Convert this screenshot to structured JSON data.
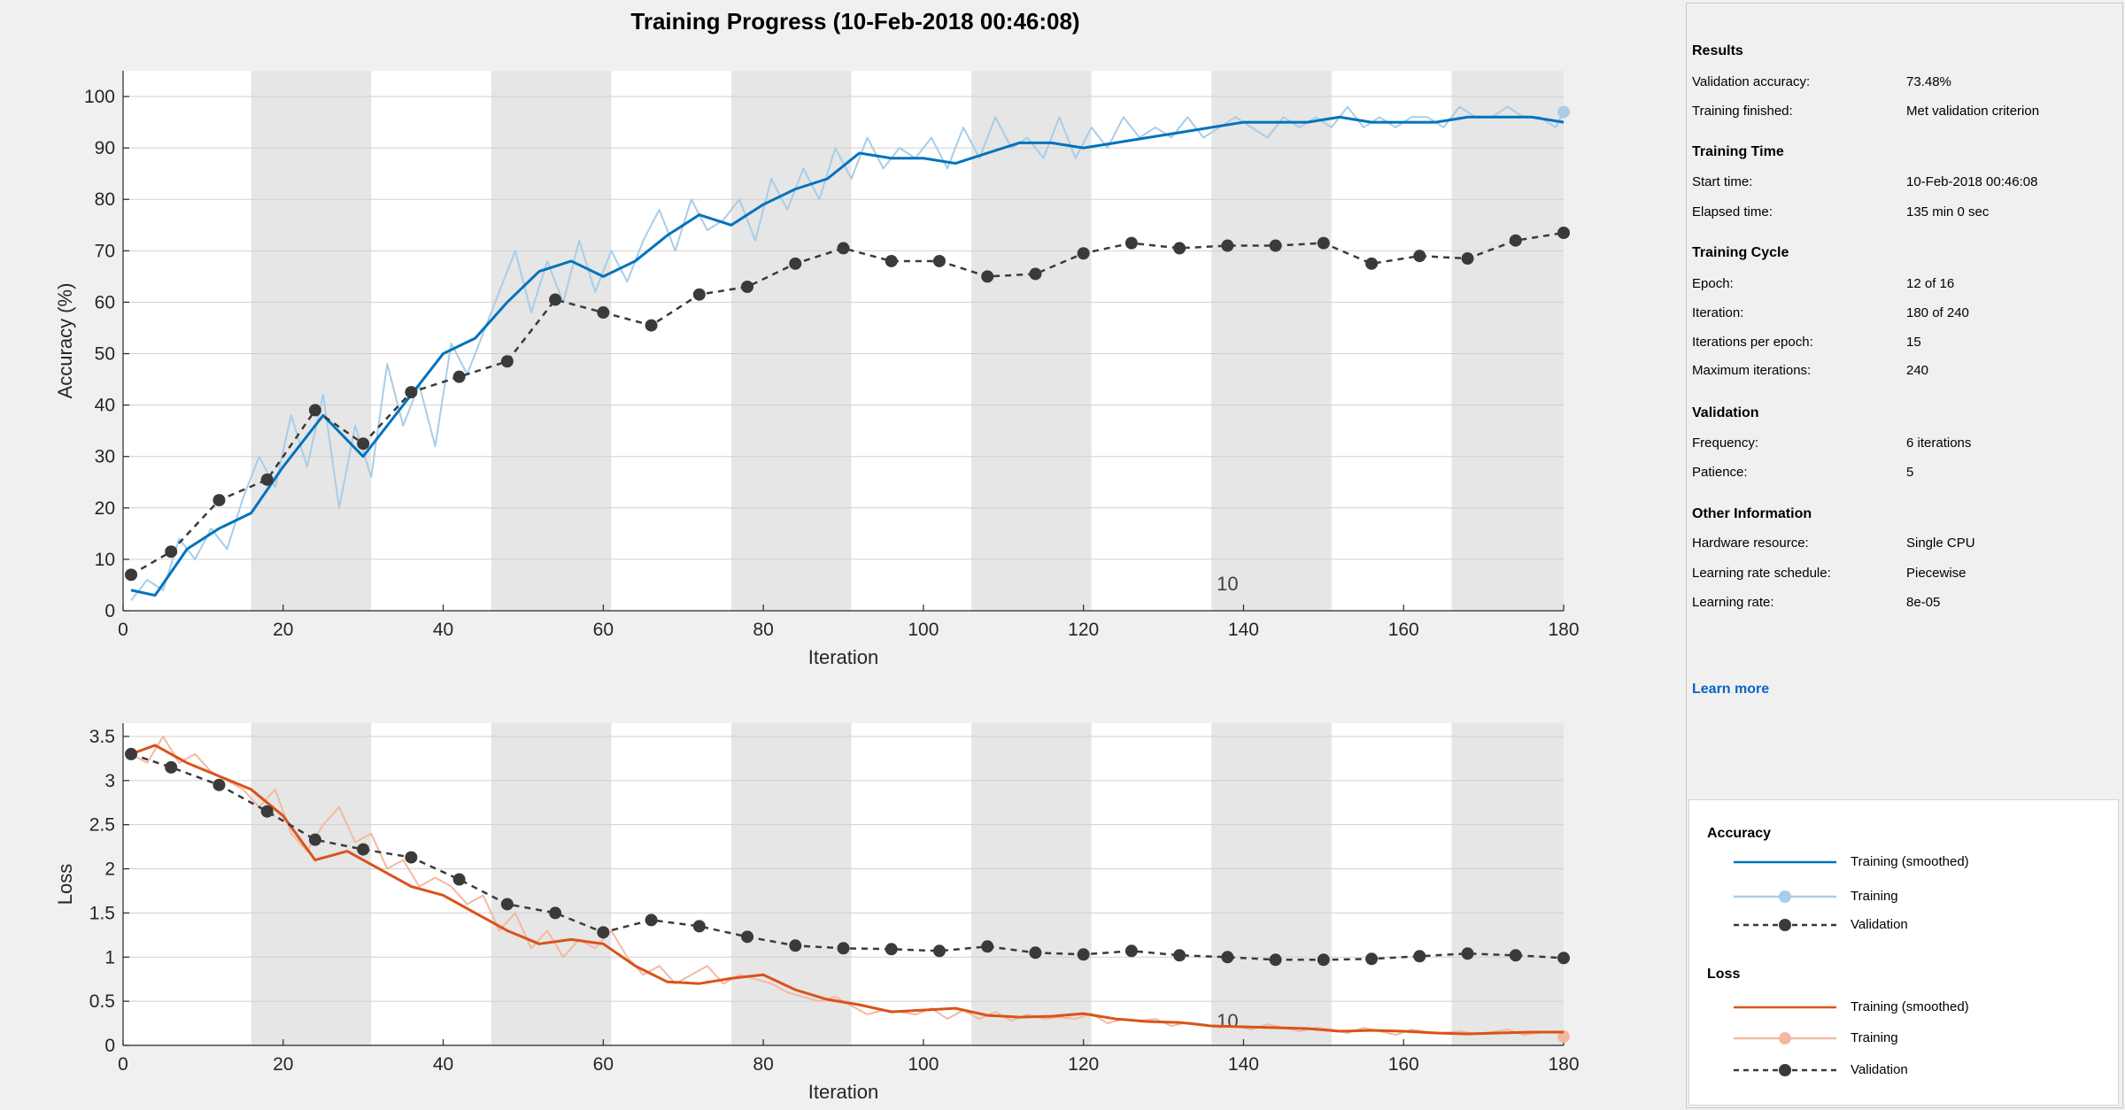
{
  "title": "Training Progress (10-Feb-2018 00:46:08)",
  "colors": {
    "accuracy_smoothed": "#0072bd",
    "accuracy_raw": "#a8cde8",
    "loss_smoothed": "#d95319",
    "loss_raw": "#f3b9a0",
    "validation": "#3a3a3a",
    "epoch_shade": "#e6e6e6",
    "link": "#0b63c5"
  },
  "chart_data": [
    {
      "type": "line",
      "name": "accuracy",
      "xlabel": "Iteration",
      "ylabel": "Accuracy (%)",
      "xlim": [
        0,
        180
      ],
      "ylim": [
        0,
        105
      ],
      "xticks": [
        0,
        20,
        40,
        60,
        80,
        100,
        120,
        140,
        160,
        180
      ],
      "yticks": [
        0,
        10,
        20,
        30,
        40,
        50,
        60,
        70,
        80,
        90,
        100
      ],
      "grid": true,
      "epoch_label": {
        "text": "10",
        "x": 138,
        "y": 4
      },
      "epoch_shading": [
        [
          16,
          31
        ],
        [
          46,
          61
        ],
        [
          76,
          91
        ],
        [
          106,
          121
        ],
        [
          136,
          151
        ],
        [
          166,
          181
        ]
      ],
      "series": [
        {
          "name": "Training (smoothed)",
          "x": [
            1,
            4,
            8,
            12,
            16,
            20,
            25,
            30,
            35,
            40,
            44,
            48,
            52,
            56,
            60,
            64,
            68,
            72,
            76,
            80,
            84,
            88,
            92,
            96,
            100,
            104,
            108,
            112,
            116,
            120,
            124,
            128,
            132,
            136,
            140,
            144,
            148,
            152,
            156,
            160,
            164,
            168,
            172,
            176,
            180
          ],
          "y": [
            4,
            3,
            12,
            16,
            19,
            28,
            38,
            30,
            40,
            50,
            53,
            60,
            66,
            68,
            65,
            68,
            73,
            77,
            75,
            79,
            82,
            84,
            89,
            88,
            88,
            87,
            89,
            91,
            91,
            90,
            91,
            92,
            93,
            94,
            95,
            95,
            95,
            96,
            95,
            95,
            95,
            96,
            96,
            96,
            95
          ]
        },
        {
          "name": "Training",
          "x": [
            1,
            3,
            5,
            7,
            9,
            11,
            13,
            15,
            17,
            19,
            21,
            23,
            25,
            27,
            29,
            31,
            33,
            35,
            37,
            39,
            41,
            43,
            45,
            47,
            49,
            51,
            53,
            55,
            57,
            59,
            61,
            63,
            65,
            67,
            69,
            71,
            73,
            75,
            77,
            79,
            81,
            83,
            85,
            87,
            89,
            91,
            93,
            95,
            97,
            99,
            101,
            103,
            105,
            107,
            109,
            111,
            113,
            115,
            117,
            119,
            121,
            123,
            125,
            127,
            129,
            131,
            133,
            135,
            137,
            139,
            141,
            143,
            145,
            147,
            149,
            151,
            153,
            155,
            157,
            159,
            161,
            163,
            165,
            167,
            169,
            171,
            173,
            175,
            177,
            179,
            180
          ],
          "y": [
            2,
            6,
            4,
            14,
            10,
            16,
            12,
            22,
            30,
            24,
            38,
            28,
            42,
            20,
            36,
            26,
            48,
            36,
            44,
            32,
            52,
            46,
            54,
            62,
            70,
            58,
            68,
            60,
            72,
            62,
            70,
            64,
            72,
            78,
            70,
            80,
            74,
            76,
            80,
            72,
            84,
            78,
            86,
            80,
            90,
            84,
            92,
            86,
            90,
            88,
            92,
            86,
            94,
            88,
            96,
            90,
            92,
            88,
            96,
            88,
            94,
            90,
            96,
            92,
            94,
            92,
            96,
            92,
            94,
            96,
            94,
            92,
            96,
            94,
            96,
            94,
            98,
            94,
            96,
            94,
            96,
            96,
            94,
            98,
            96,
            96,
            98,
            96,
            96,
            94,
            97
          ]
        },
        {
          "name": "Validation",
          "x": [
            1,
            6,
            12,
            18,
            24,
            30,
            36,
            42,
            48,
            54,
            60,
            66,
            72,
            78,
            84,
            90,
            96,
            102,
            108,
            114,
            120,
            126,
            132,
            138,
            144,
            150,
            156,
            162,
            168,
            174,
            180
          ],
          "y": [
            7,
            11.5,
            21.5,
            25.5,
            39,
            32.5,
            42.5,
            45.5,
            48.5,
            60.5,
            58,
            55.5,
            61.5,
            63,
            67.5,
            70.5,
            68,
            68,
            65,
            65.5,
            69.5,
            71.5,
            70.5,
            71,
            71,
            71.5,
            67.5,
            69,
            68.5,
            72,
            73.5
          ]
        }
      ]
    },
    {
      "type": "line",
      "name": "loss",
      "xlabel": "Iteration",
      "ylabel": "Loss",
      "xlim": [
        0,
        180
      ],
      "ylim": [
        0,
        3.65
      ],
      "xticks": [
        0,
        20,
        40,
        60,
        80,
        100,
        120,
        140,
        160,
        180
      ],
      "yticks": [
        0,
        0.5,
        1,
        1.5,
        2,
        2.5,
        3,
        3.5
      ],
      "grid": true,
      "epoch_label": {
        "text": "10",
        "x": 138,
        "y": 0.2
      },
      "epoch_shading": [
        [
          16,
          31
        ],
        [
          46,
          61
        ],
        [
          76,
          91
        ],
        [
          106,
          121
        ],
        [
          136,
          151
        ],
        [
          166,
          181
        ]
      ],
      "series": [
        {
          "name": "Training (smoothed)",
          "x": [
            1,
            4,
            8,
            12,
            16,
            20,
            24,
            28,
            32,
            36,
            40,
            44,
            48,
            52,
            56,
            60,
            64,
            68,
            72,
            76,
            80,
            84,
            88,
            92,
            96,
            100,
            104,
            108,
            112,
            116,
            120,
            124,
            128,
            132,
            136,
            140,
            144,
            148,
            152,
            156,
            160,
            164,
            168,
            172,
            176,
            180
          ],
          "y": [
            3.3,
            3.4,
            3.2,
            3.05,
            2.9,
            2.6,
            2.1,
            2.2,
            2.0,
            1.8,
            1.7,
            1.5,
            1.3,
            1.15,
            1.2,
            1.15,
            0.9,
            0.72,
            0.7,
            0.76,
            0.8,
            0.63,
            0.52,
            0.46,
            0.38,
            0.4,
            0.42,
            0.34,
            0.32,
            0.33,
            0.36,
            0.3,
            0.27,
            0.26,
            0.22,
            0.21,
            0.2,
            0.19,
            0.16,
            0.17,
            0.16,
            0.14,
            0.13,
            0.14,
            0.15,
            0.15
          ]
        },
        {
          "name": "Training",
          "x": [
            1,
            3,
            5,
            7,
            9,
            11,
            13,
            15,
            17,
            19,
            21,
            23,
            25,
            27,
            29,
            31,
            33,
            35,
            37,
            39,
            41,
            43,
            45,
            47,
            49,
            51,
            53,
            55,
            57,
            59,
            61,
            63,
            65,
            67,
            69,
            71,
            73,
            75,
            77,
            79,
            81,
            83,
            85,
            87,
            89,
            91,
            93,
            95,
            97,
            99,
            101,
            103,
            105,
            107,
            109,
            111,
            113,
            115,
            117,
            119,
            121,
            123,
            125,
            127,
            129,
            131,
            133,
            135,
            137,
            139,
            141,
            143,
            145,
            147,
            149,
            151,
            153,
            155,
            157,
            159,
            161,
            163,
            165,
            167,
            169,
            171,
            173,
            175,
            177,
            179,
            180
          ],
          "y": [
            3.3,
            3.2,
            3.5,
            3.2,
            3.3,
            3.1,
            3.0,
            2.9,
            2.7,
            2.9,
            2.4,
            2.2,
            2.5,
            2.7,
            2.3,
            2.4,
            2.0,
            2.1,
            1.8,
            1.9,
            1.8,
            1.6,
            1.7,
            1.3,
            1.5,
            1.1,
            1.3,
            1.0,
            1.2,
            1.1,
            1.3,
            1.0,
            0.8,
            0.9,
            0.7,
            0.8,
            0.9,
            0.7,
            0.8,
            0.75,
            0.7,
            0.6,
            0.55,
            0.5,
            0.55,
            0.45,
            0.35,
            0.4,
            0.38,
            0.35,
            0.42,
            0.3,
            0.4,
            0.3,
            0.38,
            0.28,
            0.35,
            0.3,
            0.32,
            0.3,
            0.36,
            0.25,
            0.3,
            0.28,
            0.3,
            0.22,
            0.26,
            0.24,
            0.2,
            0.22,
            0.18,
            0.24,
            0.2,
            0.16,
            0.2,
            0.18,
            0.14,
            0.2,
            0.16,
            0.12,
            0.18,
            0.15,
            0.14,
            0.16,
            0.13,
            0.15,
            0.18,
            0.12,
            0.14,
            0.16,
            0.1
          ]
        },
        {
          "name": "Validation",
          "x": [
            1,
            6,
            12,
            18,
            24,
            30,
            36,
            42,
            48,
            54,
            60,
            66,
            72,
            78,
            84,
            90,
            96,
            102,
            108,
            114,
            120,
            126,
            132,
            138,
            144,
            150,
            156,
            162,
            168,
            174,
            180
          ],
          "y": [
            3.3,
            3.15,
            2.95,
            2.65,
            2.33,
            2.22,
            2.13,
            1.88,
            1.6,
            1.5,
            1.28,
            1.42,
            1.35,
            1.23,
            1.13,
            1.1,
            1.09,
            1.07,
            1.12,
            1.05,
            1.03,
            1.07,
            1.02,
            1.0,
            0.97,
            0.97,
            0.98,
            1.01,
            1.04,
            1.02,
            0.99
          ]
        }
      ]
    }
  ],
  "results": {
    "heading": "Results",
    "rows": [
      {
        "label": "Validation accuracy:",
        "value": "73.48%"
      },
      {
        "label": "Training finished:",
        "value": "Met validation criterion"
      }
    ]
  },
  "training_time": {
    "heading": "Training Time",
    "rows": [
      {
        "label": "Start time:",
        "value": "10-Feb-2018 00:46:08"
      },
      {
        "label": "Elapsed time:",
        "value": "135 min 0 sec"
      }
    ]
  },
  "training_cycle": {
    "heading": "Training Cycle",
    "rows": [
      {
        "label": "Epoch:",
        "value": "12 of 16"
      },
      {
        "label": "Iteration:",
        "value": "180 of 240"
      },
      {
        "label": "Iterations per epoch:",
        "value": "15"
      },
      {
        "label": "Maximum iterations:",
        "value": "240"
      }
    ]
  },
  "validation": {
    "heading": "Validation",
    "rows": [
      {
        "label": "Frequency:",
        "value": "6 iterations"
      },
      {
        "label": "Patience:",
        "value": "5"
      }
    ]
  },
  "other_info": {
    "heading": "Other Information",
    "rows": [
      {
        "label": "Hardware resource:",
        "value": "Single CPU"
      },
      {
        "label": "Learning rate schedule:",
        "value": "Piecewise"
      },
      {
        "label": "Learning rate:",
        "value": "8e-05"
      }
    ]
  },
  "learn_more": "Learn more",
  "legend": {
    "accuracy_heading": "Accuracy",
    "loss_heading": "Loss",
    "training_smoothed": "Training (smoothed)",
    "training": "Training",
    "validation": "Validation"
  }
}
